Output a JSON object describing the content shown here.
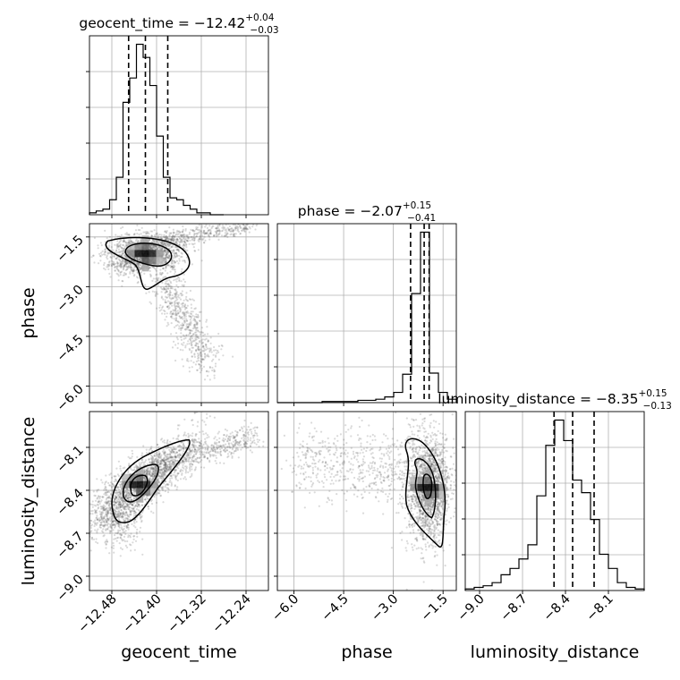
{
  "chart_data": {
    "type": "corner",
    "parameters": [
      "geocent_time",
      "phase",
      "luminosity_distance"
    ],
    "axis_labels": {
      "x": [
        "geocent_time",
        "phase",
        "luminosity_distance"
      ],
      "y": [
        "phase",
        "luminosity_distance"
      ]
    },
    "titles": [
      {
        "name": "geocent_time",
        "median": "−12.42",
        "plus": "+0.04",
        "minus": "−0.03"
      },
      {
        "name": "phase",
        "median": "−2.07",
        "plus": "+0.15",
        "minus": "−0.41"
      },
      {
        "name": "luminosity_distance",
        "median": "−8.35",
        "plus": "+0.15",
        "minus": "−0.13"
      }
    ],
    "ranges": {
      "geocent_time": [
        -12.52,
        -12.2
      ],
      "phase": [
        -6.5,
        -1.1
      ],
      "luminosity_distance": [
        -9.1,
        -7.85
      ]
    },
    "ticks": {
      "geocent_time": {
        "values": [
          -12.48,
          -12.4,
          -12.32,
          -12.24
        ],
        "labels": [
          "−12.48",
          "−12.40",
          "−12.32",
          "−12.24"
        ]
      },
      "phase": {
        "values": [
          -6.0,
          -4.5,
          -3.0,
          -1.5
        ],
        "labels": [
          "−6.0",
          "−4.5",
          "−3.0",
          "−1.5"
        ]
      },
      "luminosity_distance": {
        "values": [
          -9.0,
          -8.7,
          -8.4,
          -8.1
        ],
        "labels": [
          "−9.0",
          "−8.7",
          "−8.4",
          "−8.1"
        ]
      }
    },
    "quantiles": {
      "geocent_time": [
        -12.45,
        -12.42,
        -12.38
      ],
      "phase": [
        -2.48,
        -2.07,
        -1.92
      ],
      "luminosity_distance": [
        -8.48,
        -8.35,
        -8.2
      ]
    },
    "histograms": {
      "geocent_time": {
        "edges": [
          -12.52,
          -12.508,
          -12.496,
          -12.484,
          -12.472,
          -12.46,
          -12.448,
          -12.436,
          -12.424,
          -12.412,
          -12.4,
          -12.388,
          -12.376,
          -12.364,
          -12.352,
          -12.34,
          -12.328,
          -12.316,
          -12.304,
          -12.292,
          -12.28
        ],
        "counts": [
          1,
          2,
          3,
          8,
          20,
          60,
          73,
          91,
          84,
          69,
          42,
          20,
          9,
          8,
          5,
          3,
          1,
          1,
          0,
          0
        ]
      },
      "phase": {
        "edges": [
          -6.5,
          -6.23,
          -5.96,
          -5.69,
          -5.42,
          -5.15,
          -4.88,
          -4.61,
          -4.34,
          -4.07,
          -3.8,
          -3.53,
          -3.26,
          -2.99,
          -2.72,
          -2.45,
          -2.18,
          -1.91,
          -1.64,
          -1.37,
          -1.1
        ],
        "counts": [
          0,
          0,
          0,
          0,
          0,
          1,
          1,
          1,
          1,
          2,
          2,
          3,
          5,
          9,
          25,
          96,
          150,
          26,
          9,
          3
        ]
      },
      "luminosity_distance": {
        "edges": [
          -9.1,
          -9.0375,
          -8.975,
          -8.9125,
          -8.85,
          -8.7875,
          -8.725,
          -8.6625,
          -8.6,
          -8.5375,
          -8.475,
          -8.4125,
          -8.35,
          -8.2875,
          -8.225,
          -8.1625,
          -8.1,
          -8.0375,
          -7.975,
          -7.9125,
          -7.85
        ],
        "counts": [
          1,
          2,
          3,
          5,
          10,
          14,
          20,
          29,
          60,
          92,
          108,
          95,
          70,
          62,
          45,
          23,
          14,
          5,
          2,
          1
        ]
      }
    },
    "scatter_2d": [
      {
        "x": "geocent_time",
        "y": "phase",
        "mode": {
          "x": -12.42,
          "y": -2.0
        }
      },
      {
        "x": "geocent_time",
        "y": "luminosity_distance",
        "mode": {
          "x": -12.43,
          "y": -8.36
        }
      },
      {
        "x": "phase",
        "y": "luminosity_distance",
        "mode": {
          "x": -1.95,
          "y": -8.38
        }
      }
    ]
  }
}
